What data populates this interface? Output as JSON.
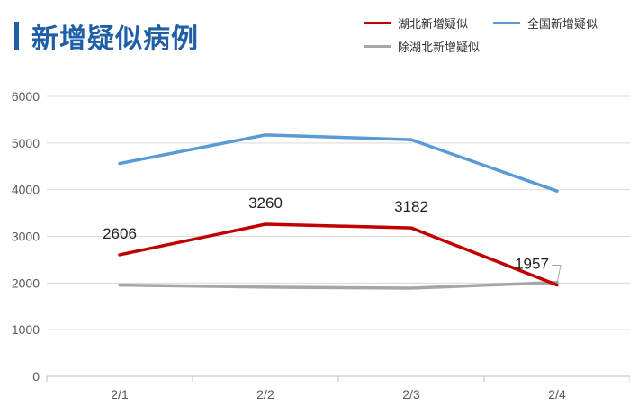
{
  "title": "新增疑似病例",
  "colors": {
    "title_text": "#1f5fa8",
    "title_bar": "#1f5fa8",
    "hubei": "#c00000",
    "national": "#5b9bd5",
    "non_hubei": "#a6a6a6",
    "grid": "#d9d9d9",
    "axis": "#bfbfbf"
  },
  "legend": [
    {
      "label": "湖北新增疑似",
      "series": "hubei"
    },
    {
      "label": "全国新增疑似",
      "series": "national"
    },
    {
      "label": "除湖北新增疑似",
      "series": "non_hubei"
    }
  ],
  "chart_data": {
    "type": "line",
    "categories": [
      "2/1",
      "2/2",
      "2/3",
      "2/4"
    ],
    "ylim": [
      0,
      6000
    ],
    "yticks": [
      0,
      1000,
      2000,
      3000,
      4000,
      5000,
      6000
    ],
    "grid": true,
    "legend_position": "top-right",
    "series": [
      {
        "name": "湖北新增疑似",
        "key": "hubei",
        "values": [
          2606,
          3260,
          3182,
          1957
        ],
        "labels": [
          "2606",
          "3260",
          "3182",
          "1957"
        ]
      },
      {
        "name": "全国新增疑似",
        "key": "national",
        "values": [
          4562,
          5173,
          5072,
          3971
        ]
      },
      {
        "name": "除湖北新增疑似",
        "key": "non_hubei",
        "values": [
          1956,
          1913,
          1890,
          2014
        ]
      }
    ]
  }
}
